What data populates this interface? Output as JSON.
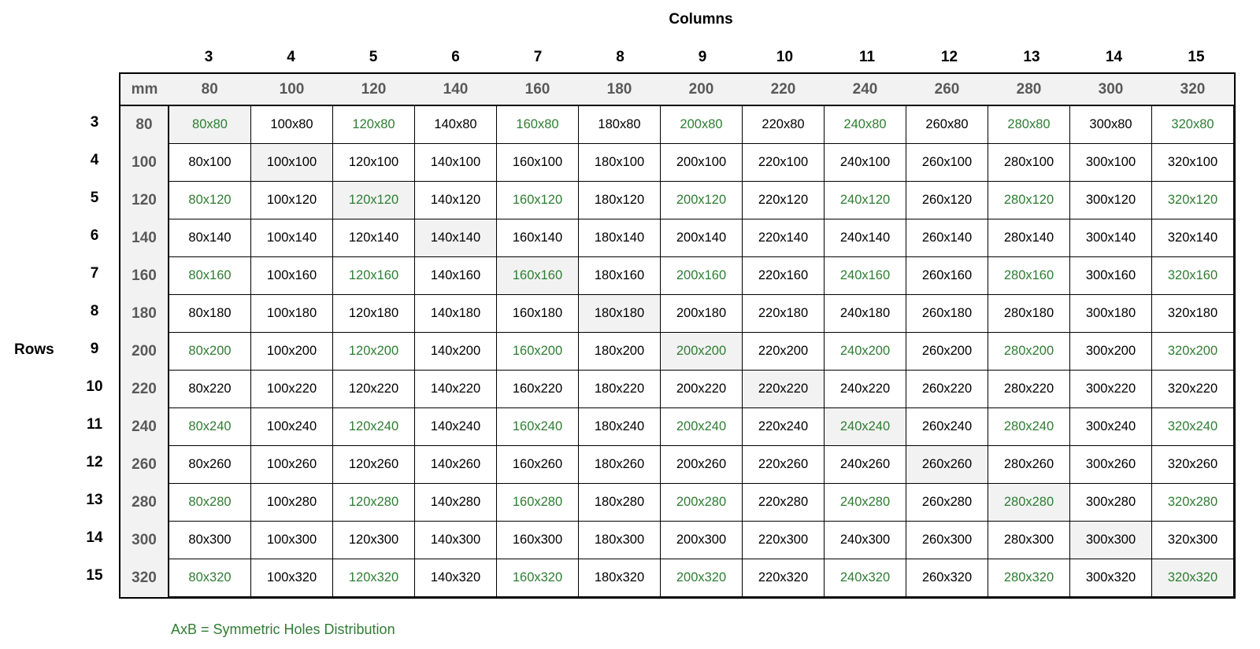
{
  "titles": {
    "columns": "Columns",
    "rows": "Rows"
  },
  "header": {
    "unit": "mm"
  },
  "column_numbers": [
    "3",
    "4",
    "5",
    "6",
    "7",
    "8",
    "9",
    "10",
    "11",
    "12",
    "13",
    "14",
    "15"
  ],
  "row_numbers": [
    "3",
    "4",
    "5",
    "6",
    "7",
    "8",
    "9",
    "10",
    "11",
    "12",
    "13",
    "14",
    "15"
  ],
  "column_mm": [
    "80",
    "100",
    "120",
    "140",
    "160",
    "180",
    "200",
    "220",
    "240",
    "260",
    "280",
    "300",
    "320"
  ],
  "row_mm": [
    "80",
    "100",
    "120",
    "140",
    "160",
    "180",
    "200",
    "220",
    "240",
    "260",
    "280",
    "300",
    "320"
  ],
  "cells": [
    [
      "80x80",
      "100x80",
      "120x80",
      "140x80",
      "160x80",
      "180x80",
      "200x80",
      "220x80",
      "240x80",
      "260x80",
      "280x80",
      "300x80",
      "320x80"
    ],
    [
      "80x100",
      "100x100",
      "120x100",
      "140x100",
      "160x100",
      "180x100",
      "200x100",
      "220x100",
      "240x100",
      "260x100",
      "280x100",
      "300x100",
      "320x100"
    ],
    [
      "80x120",
      "100x120",
      "120x120",
      "140x120",
      "160x120",
      "180x120",
      "200x120",
      "220x120",
      "240x120",
      "260x120",
      "280x120",
      "300x120",
      "320x120"
    ],
    [
      "80x140",
      "100x140",
      "120x140",
      "140x140",
      "160x140",
      "180x140",
      "200x140",
      "220x140",
      "240x140",
      "260x140",
      "280x140",
      "300x140",
      "320x140"
    ],
    [
      "80x160",
      "100x160",
      "120x160",
      "140x160",
      "160x160",
      "180x160",
      "200x160",
      "220x160",
      "240x160",
      "260x160",
      "280x160",
      "300x160",
      "320x160"
    ],
    [
      "80x180",
      "100x180",
      "120x180",
      "140x180",
      "160x180",
      "180x180",
      "200x180",
      "220x180",
      "240x180",
      "260x180",
      "280x180",
      "300x180",
      "320x180"
    ],
    [
      "80x200",
      "100x200",
      "120x200",
      "140x200",
      "160x200",
      "180x200",
      "200x200",
      "220x200",
      "240x200",
      "260x200",
      "280x200",
      "300x200",
      "320x200"
    ],
    [
      "80x220",
      "100x220",
      "120x220",
      "140x220",
      "160x220",
      "180x220",
      "200x220",
      "220x220",
      "240x220",
      "260x220",
      "280x220",
      "300x220",
      "320x220"
    ],
    [
      "80x240",
      "100x240",
      "120x240",
      "140x240",
      "160x240",
      "180x240",
      "200x240",
      "220x240",
      "240x240",
      "260x240",
      "280x240",
      "300x240",
      "320x240"
    ],
    [
      "80x260",
      "100x260",
      "120x260",
      "140x260",
      "160x260",
      "180x260",
      "200x260",
      "220x260",
      "240x260",
      "260x260",
      "280x260",
      "300x260",
      "320x260"
    ],
    [
      "80x280",
      "100x280",
      "120x280",
      "140x280",
      "160x280",
      "180x280",
      "200x280",
      "220x280",
      "240x280",
      "260x280",
      "280x280",
      "300x280",
      "320x280"
    ],
    [
      "80x300",
      "100x300",
      "120x300",
      "140x300",
      "160x300",
      "180x300",
      "200x300",
      "220x300",
      "240x300",
      "260x300",
      "280x300",
      "300x300",
      "320x300"
    ],
    [
      "80x320",
      "100x320",
      "120x320",
      "140x320",
      "160x320",
      "180x320",
      "200x320",
      "220x320",
      "240x320",
      "260x320",
      "280x320",
      "300x320",
      "320x320"
    ]
  ],
  "legend": {
    "text": "AxB = Symmetric Holes Distribution"
  },
  "colors": {
    "symmetric_text": "#2e7d32",
    "header_fill": "#f2f2f2",
    "diagonal_fill": "#f2f2f2",
    "header_text": "#595959"
  }
}
